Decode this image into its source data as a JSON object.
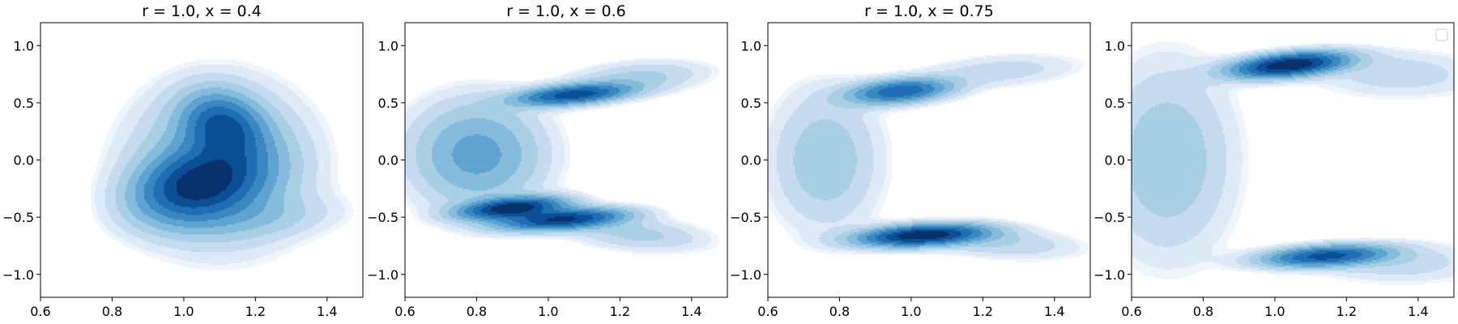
{
  "colors": {
    "levels": [
      "#eef5fc",
      "#deebf7",
      "#c6dbef",
      "#a9cfe5",
      "#85bcdc",
      "#5fa3d0",
      "#3b87c0",
      "#1f6eb3",
      "#0b4f95",
      "#08306b"
    ],
    "axis": "#000000",
    "legend_border": "#cccccc"
  },
  "chart_data": [
    {
      "type": "kde-contourf",
      "title": "r = 1.0, x = 0.4",
      "xlim": [
        0.6,
        1.5
      ],
      "ylim": [
        -1.2,
        1.2
      ],
      "xticks": [
        "0.6",
        "0.8",
        "1.0",
        "1.2",
        "1.4"
      ],
      "yticks": [
        "1.0",
        "0.5",
        "0.0",
        "−0.5",
        "−1.0"
      ],
      "legend": false,
      "clusters": [
        {
          "cx": 1.04,
          "cy": -0.22,
          "sx": 0.11,
          "sy": 0.2,
          "r": 0.3,
          "w": 1.0
        },
        {
          "cx": 1.11,
          "cy": 0.3,
          "sx": 0.07,
          "sy": 0.18,
          "r": -0.2,
          "w": 0.75
        },
        {
          "cx": 1.1,
          "cy": -0.05,
          "sx": 0.15,
          "sy": 0.42,
          "r": 0.0,
          "w": 0.45
        },
        {
          "cx": 1.22,
          "cy": -0.5,
          "sx": 0.15,
          "sy": 0.12,
          "r": 0.2,
          "w": 0.12
        }
      ]
    },
    {
      "type": "kde-contourf",
      "title": "r = 1.0, x = 0.6",
      "xlim": [
        0.6,
        1.5
      ],
      "ylim": [
        -1.2,
        1.2
      ],
      "xticks": [
        "0.6",
        "0.8",
        "1.0",
        "1.2",
        "1.4"
      ],
      "yticks": [
        "1.0",
        "0.5",
        "0.0",
        "−0.5",
        "−1.0"
      ],
      "legend": false,
      "clusters": [
        {
          "cx": 0.9,
          "cy": -0.42,
          "sx": 0.09,
          "sy": 0.06,
          "r": 0.4,
          "w": 1.0
        },
        {
          "cx": 1.04,
          "cy": -0.52,
          "sx": 0.11,
          "sy": 0.06,
          "r": 0.4,
          "w": 0.9
        },
        {
          "cx": 1.07,
          "cy": 0.57,
          "sx": 0.1,
          "sy": 0.06,
          "r": 0.4,
          "w": 0.8
        },
        {
          "cx": 0.8,
          "cy": 0.05,
          "sx": 0.12,
          "sy": 0.3,
          "r": 0.0,
          "w": 0.35
        },
        {
          "cx": 1.25,
          "cy": 0.72,
          "sx": 0.13,
          "sy": 0.1,
          "r": 0.3,
          "w": 0.15
        },
        {
          "cx": 1.25,
          "cy": -0.65,
          "sx": 0.13,
          "sy": 0.1,
          "r": -0.3,
          "w": 0.15
        }
      ]
    },
    {
      "type": "kde-contourf",
      "title": "r = 1.0, x = 0.75",
      "xlim": [
        0.6,
        1.5
      ],
      "ylim": [
        -1.2,
        1.2
      ],
      "xticks": [
        "0.6",
        "0.8",
        "1.0",
        "1.2",
        "1.4"
      ],
      "yticks": [
        "1.0",
        "0.5",
        "0.0",
        "−0.5",
        "−1.0"
      ],
      "legend": false,
      "clusters": [
        {
          "cx": 1.03,
          "cy": -0.66,
          "sx": 0.11,
          "sy": 0.06,
          "r": 0.3,
          "w": 1.0
        },
        {
          "cx": 0.97,
          "cy": 0.6,
          "sx": 0.09,
          "sy": 0.07,
          "r": 0.3,
          "w": 0.65
        },
        {
          "cx": 0.76,
          "cy": 0.0,
          "sx": 0.1,
          "sy": 0.4,
          "r": 0.0,
          "w": 0.18
        },
        {
          "cx": 1.25,
          "cy": 0.78,
          "sx": 0.15,
          "sy": 0.1,
          "r": 0.3,
          "w": 0.1
        },
        {
          "cx": 1.25,
          "cy": -0.72,
          "sx": 0.15,
          "sy": 0.1,
          "r": -0.3,
          "w": 0.12
        }
      ]
    },
    {
      "type": "kde-contourf",
      "title": "",
      "xlim": [
        0.6,
        1.5
      ],
      "ylim": [
        -1.2,
        1.2
      ],
      "xticks": [
        "0.6",
        "0.8",
        "1.0",
        "1.2",
        "1.4"
      ],
      "yticks": [
        "1.0",
        "0.5",
        "0.0",
        "−0.5",
        "−1.0"
      ],
      "legend": true,
      "legend_placement": "upper right",
      "clusters": [
        {
          "cx": 1.04,
          "cy": 0.83,
          "sx": 0.1,
          "sy": 0.07,
          "r": 0.4,
          "w": 1.0
        },
        {
          "cx": 1.14,
          "cy": -0.84,
          "sx": 0.11,
          "sy": 0.06,
          "r": 0.3,
          "w": 0.7
        },
        {
          "cx": 0.7,
          "cy": 0.0,
          "sx": 0.12,
          "sy": 0.55,
          "r": 0.0,
          "w": 0.18
        },
        {
          "cx": 1.35,
          "cy": 0.75,
          "sx": 0.16,
          "sy": 0.14,
          "r": 0.0,
          "w": 0.1
        },
        {
          "cx": 1.35,
          "cy": -0.9,
          "sx": 0.16,
          "sy": 0.12,
          "r": 0.0,
          "w": 0.1
        }
      ]
    }
  ]
}
